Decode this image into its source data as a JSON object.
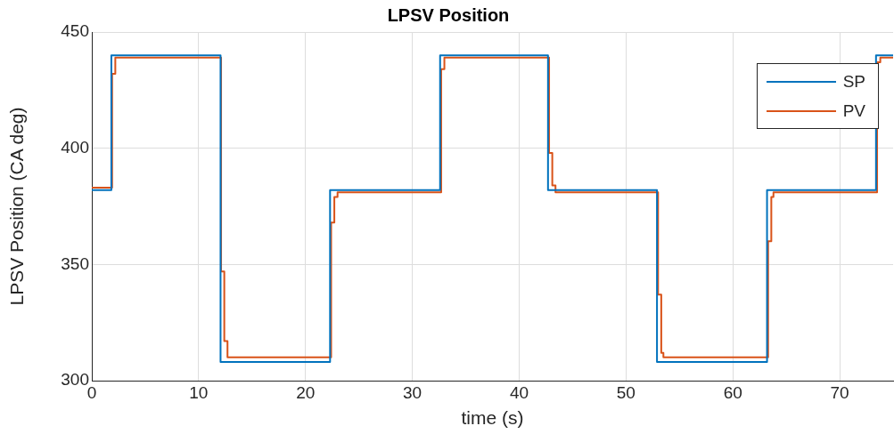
{
  "chart_data": {
    "type": "step",
    "title": "LPSV Position",
    "xlabel": "time (s)",
    "ylabel": "LPSV Position (CA deg)",
    "xlim": [
      0,
      75
    ],
    "xticks": [
      0,
      10,
      20,
      30,
      40,
      50,
      60,
      70
    ],
    "ylim": [
      300,
      450
    ],
    "yticks": [
      300,
      350,
      400,
      450
    ],
    "grid": true,
    "legend": "top right",
    "series": [
      {
        "name": "SP",
        "color": "#0072bd",
        "x": [
          0,
          1.83,
          12.05,
          22.3,
          32.6,
          42.7,
          52.9,
          63.2,
          73.4,
          75
        ],
        "values": [
          382,
          440,
          308,
          382,
          440,
          382,
          308,
          382,
          440,
          440
        ]
      },
      {
        "name": "PV",
        "color": "#d95319",
        "x": [
          0,
          1.9,
          2.2,
          12.1,
          12.4,
          12.7,
          22.4,
          22.7,
          23.0,
          32.7,
          33.0,
          42.8,
          43.1,
          43.4,
          53.0,
          53.3,
          53.5,
          63.3,
          63.6,
          63.8,
          73.5,
          73.8,
          75
        ],
        "values": [
          383,
          432,
          439,
          347,
          317,
          310,
          368,
          379,
          381,
          434,
          439,
          398,
          384,
          381,
          337,
          312,
          310,
          360,
          379,
          381,
          437,
          439,
          439
        ]
      }
    ]
  }
}
